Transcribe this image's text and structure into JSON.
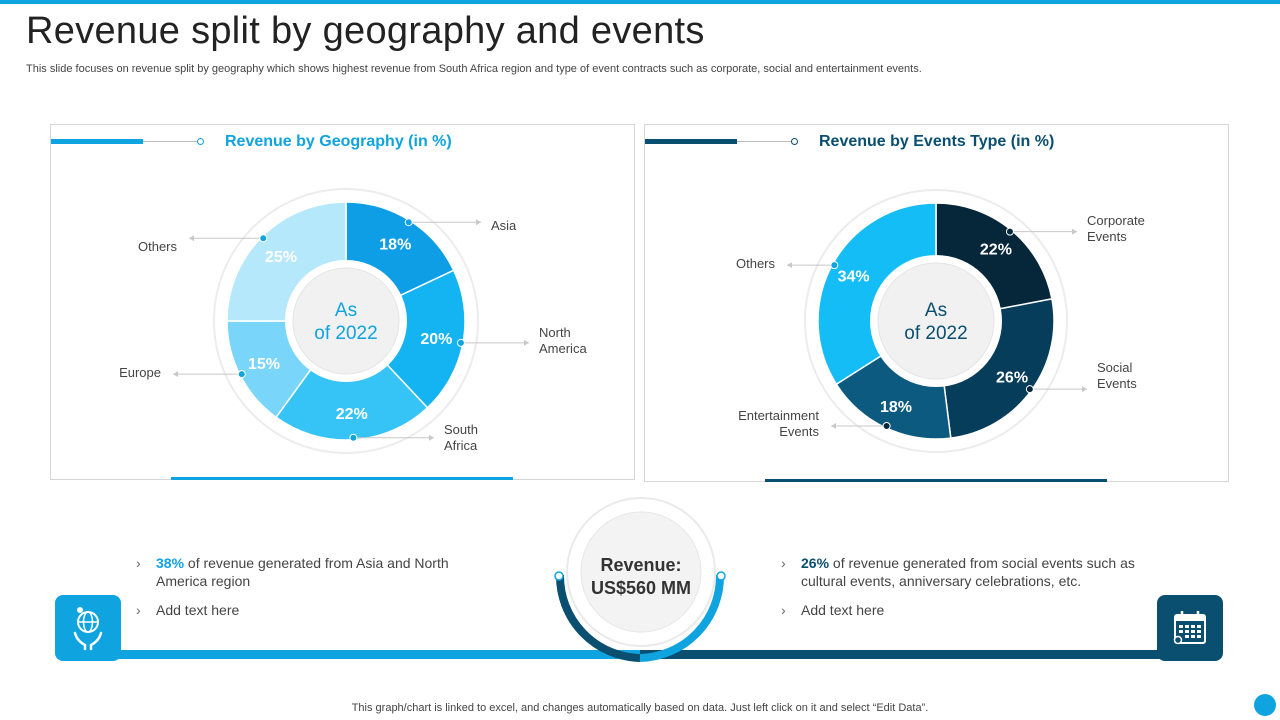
{
  "page": {
    "title": "Revenue split by geography and events",
    "subtitle": "This slide focuses on revenue split by geography which shows highest revenue from South Africa region and type  of event contracts such as corporate, social and entertainment events.",
    "footer": "This graph/chart is linked to excel,  and changes automatically based on data. Just left click on it and select “Edit Data”.",
    "center_label_line1": "Revenue:",
    "center_label_line2": "US$560 MM"
  },
  "colors": {
    "light_blue": "#0fa3e0",
    "dark_blue": "#0a4f70"
  },
  "left_panel": {
    "title": "Revenue by Geography (in %)",
    "bullets": [
      {
        "highlight": "38%",
        "text": " of revenue generated from Asia and North America region"
      },
      {
        "highlight": "",
        "text": "Add text here"
      }
    ],
    "icon": "globe-hands-icon"
  },
  "right_panel": {
    "title": "Revenue by Events Type (in %)",
    "bullets": [
      {
        "highlight": "26%",
        "text": " of revenue generated from social events such as cultural events, anniversary celebrations, etc."
      },
      {
        "highlight": "",
        "text": "Add text here"
      }
    ],
    "icon": "calendar-icon"
  },
  "chart_data": [
    {
      "type": "pie",
      "title": "Revenue by Geography (in %)",
      "center_label": [
        "As",
        "of 2022"
      ],
      "slices": [
        {
          "label": "Asia",
          "value": 18,
          "display": "18%",
          "color": "#0e9ee6"
        },
        {
          "label": "North America",
          "value": 20,
          "display": "20%",
          "color": "#14b3f2"
        },
        {
          "label": "South Africa",
          "value": 22,
          "display": "22%",
          "color": "#36c4f7"
        },
        {
          "label": "Europe",
          "value": 15,
          "display": "15%",
          "color": "#79d6fa"
        },
        {
          "label": "Others",
          "value": 25,
          "display": "25%",
          "color": "#b6e8fc"
        }
      ]
    },
    {
      "type": "pie",
      "title": "Revenue by Events Type (in %)",
      "center_label": [
        "As",
        "of 2022"
      ],
      "slices": [
        {
          "label": "Corporate Events",
          "value": 22,
          "display": "22%",
          "color": "#06263a"
        },
        {
          "label": "Social Events",
          "value": 26,
          "display": "26%",
          "color": "#063d5a"
        },
        {
          "label": "Entertainment Events",
          "value": 18,
          "display": "18%",
          "color": "#0c5a7f"
        },
        {
          "label": "Others",
          "value": 34,
          "display": "34%",
          "color": "#14bdf5"
        }
      ]
    }
  ]
}
